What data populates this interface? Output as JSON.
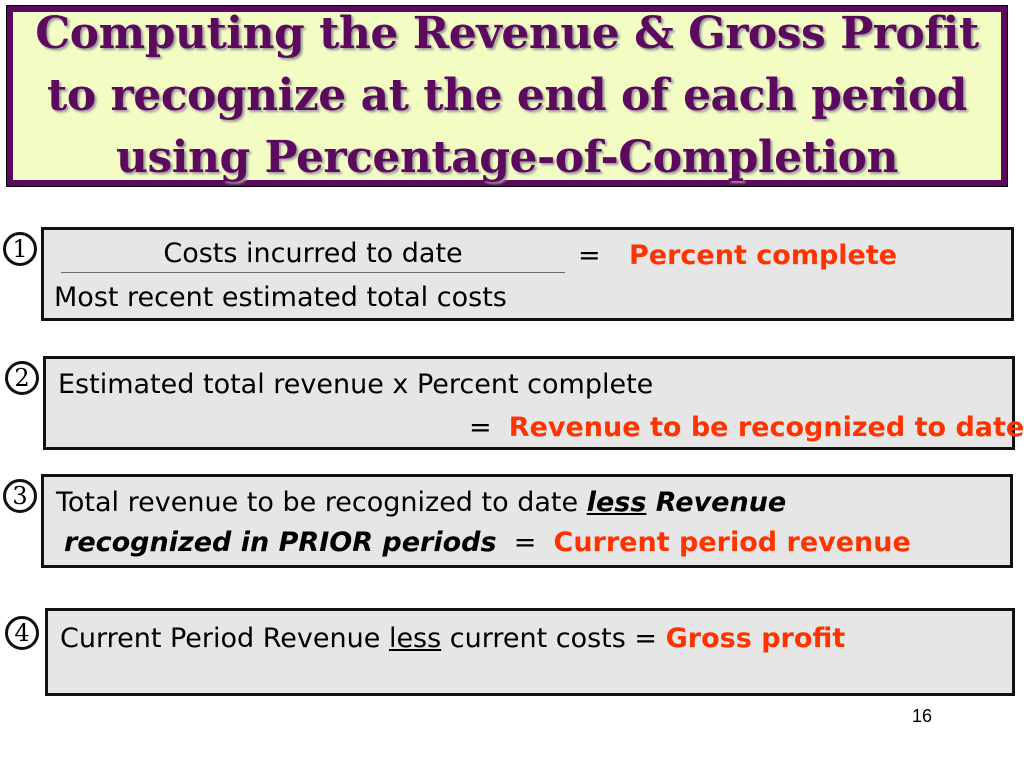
{
  "title": {
    "lines": [
      "Computing the Revenue & Gross Profit",
      "to recognize at the end of each period",
      "using Percentage-of-Completion"
    ]
  },
  "steps": [
    {
      "number": "1",
      "numerator": "Costs incurred to date",
      "denominator": "Most recent estimated total costs",
      "equals": "=",
      "result": "Percent complete"
    },
    {
      "number": "2",
      "expression": "Estimated total revenue  x  Percent complete",
      "equals": "=",
      "result": "Revenue to be recognized to date"
    },
    {
      "number": "3",
      "text_before": "Total revenue to be recognized to date ",
      "less_word": "less",
      "emph_part1": " Revenue",
      "emph_part2": "recognized in PRIOR periods",
      "equals": "=",
      "result": "Current period revenue"
    },
    {
      "number": "4",
      "text_before": "Current Period Revenue ",
      "less_word": "less",
      "text_after": " current costs = ",
      "result": "Gross profit"
    }
  ],
  "page_number": "16",
  "colors": {
    "title_text": "#5c0a5e",
    "title_background": "#f3fcc3",
    "result_text": "#ff3300",
    "box_background": "#e6e6e6"
  }
}
